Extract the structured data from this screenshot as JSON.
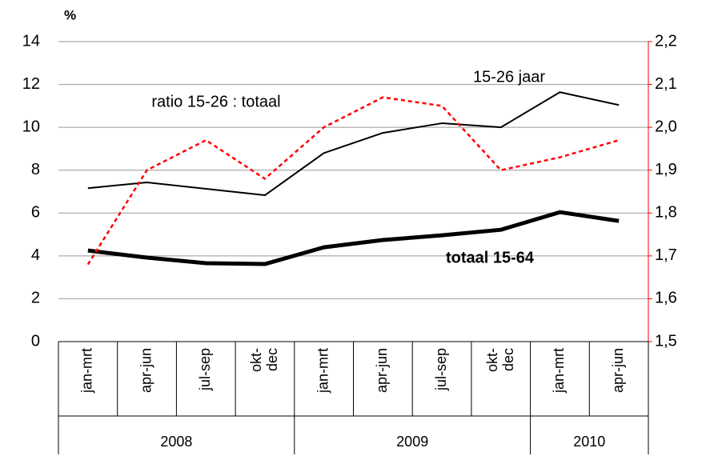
{
  "chart_data": {
    "type": "line",
    "y_unit_label": "%",
    "categories": [
      "jan-mrt",
      "apr-jun",
      "jul-sep",
      "okt- dec",
      "jan-mrt",
      "apr-jun",
      "jul-sep",
      "okt- dec",
      "jan-mrt",
      "apr-jun"
    ],
    "groups": [
      {
        "label": "2008",
        "count": 4
      },
      {
        "label": "2009",
        "count": 4
      },
      {
        "label": "2010",
        "count": 2
      }
    ],
    "series": [
      {
        "name": "15-26 jaar",
        "color": "#000000",
        "width": 2,
        "dashed": false,
        "values": [
          7.16,
          7.43,
          7.13,
          6.83,
          8.8,
          9.74,
          10.19,
          10.0,
          11.64,
          11.04
        ]
      },
      {
        "name": "totaal 15-64",
        "color": "#000000",
        "width": 5,
        "dashed": false,
        "values": [
          4.25,
          3.92,
          3.66,
          3.62,
          4.4,
          4.74,
          4.96,
          5.22,
          6.04,
          5.63
        ]
      },
      {
        "name": "ratio 15-26 : totaal",
        "color": "#ff0000",
        "width": 2.5,
        "dashed": true,
        "axis": "y2",
        "values": [
          1.68,
          1.9,
          1.97,
          1.88,
          2.0,
          2.07,
          2.05,
          1.9,
          1.93,
          1.97
        ]
      }
    ],
    "ylim": [
      0,
      14
    ],
    "yticks": [
      0,
      2,
      4,
      6,
      8,
      10,
      12,
      14
    ],
    "y2lim": [
      1.5,
      2.2
    ],
    "y2ticks": [
      {
        "value": 1.5,
        "label": "1,5"
      },
      {
        "value": 1.6,
        "label": "1,6"
      },
      {
        "value": 1.7,
        "label": "1,7"
      },
      {
        "value": 1.8,
        "label": "1,8"
      },
      {
        "value": 1.9,
        "label": "1,9"
      },
      {
        "value": 2.0,
        "label": "2,0"
      },
      {
        "value": 2.1,
        "label": "2,1"
      },
      {
        "value": 2.2,
        "label": "2,2"
      }
    ],
    "y2color": "#ff0000",
    "grid": true
  }
}
